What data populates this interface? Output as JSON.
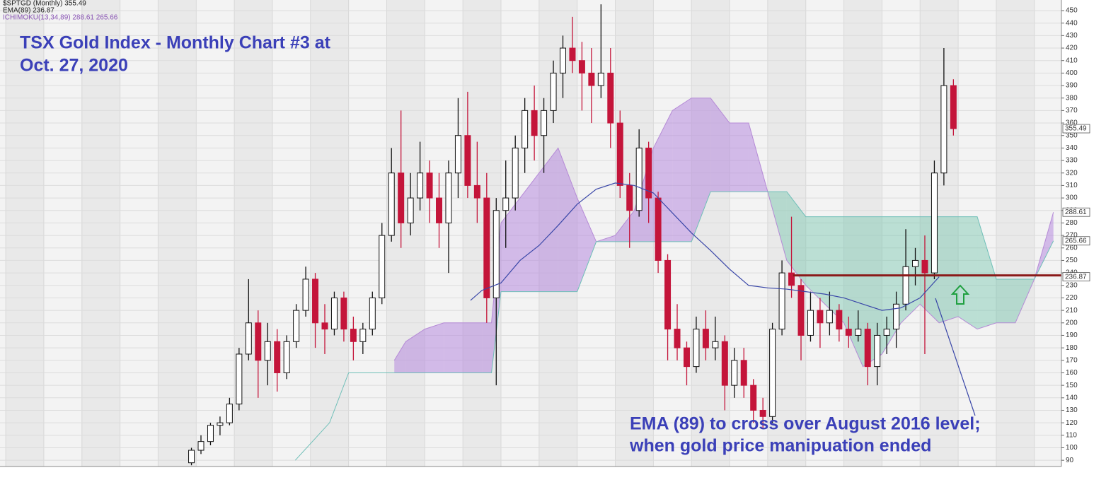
{
  "chart_data": {
    "type": "candlestick",
    "header": [
      "$SPTGD (Monthly) 355.49",
      "EMA(89) 236.87",
      "ICHIMOKU(13,34,89) 288.61 265.66"
    ],
    "title_lines": [
      "TSX Gold Index - Monthly Chart #3 at",
      "Oct. 27, 2020"
    ],
    "annotation_lines": [
      "EMA (89) to  cross over August 2016 level;",
      "when gold price manipuation ended"
    ],
    "xlim": [
      1995.85,
      2023.71
    ],
    "xticks": [
      1996,
      1997,
      1998,
      1999,
      2000,
      2001,
      2002,
      2003,
      2004,
      2005,
      2006,
      2007,
      2008,
      2009,
      2010,
      2011,
      2012,
      2013,
      2014,
      2015,
      2016,
      2017,
      2018,
      2019,
      2020,
      2021,
      2022,
      2023
    ],
    "ylim": [
      85,
      458.5
    ],
    "yticks": [
      90,
      100,
      110,
      120,
      130,
      140,
      150,
      160,
      170,
      180,
      190,
      200,
      210,
      220,
      230,
      240,
      250,
      260,
      270,
      280,
      290,
      300,
      310,
      320,
      330,
      340,
      350,
      360,
      370,
      380,
      390,
      400,
      410,
      420,
      430,
      440,
      450
    ],
    "grid": true,
    "price_labels": [
      355.49,
      288.61,
      265.66,
      236.87
    ],
    "candles": {
      "up_color": "#ffffff",
      "down_color": "#c4153a",
      "edge_color": "#111111",
      "x": [
        2000.75,
        2001,
        2001.25,
        2001.5,
        2001.75,
        2002,
        2002.25,
        2002.5,
        2002.75,
        2003,
        2003.25,
        2003.5,
        2003.75,
        2004,
        2004.25,
        2004.5,
        2004.75,
        2005,
        2005.25,
        2005.5,
        2005.75,
        2006,
        2006.25,
        2006.5,
        2006.75,
        2007,
        2007.25,
        2007.5,
        2007.75,
        2008,
        2008.25,
        2008.5,
        2008.75,
        2009,
        2009.25,
        2009.5,
        2009.75,
        2010,
        2010.25,
        2010.5,
        2010.75,
        2011,
        2011.25,
        2011.5,
        2011.75,
        2012,
        2012.25,
        2012.5,
        2012.75,
        2013,
        2013.25,
        2013.5,
        2013.75,
        2014,
        2014.25,
        2014.5,
        2014.75,
        2015,
        2015.25,
        2015.5,
        2015.75,
        2016,
        2016.25,
        2016.5,
        2016.75,
        2017,
        2017.25,
        2017.5,
        2017.75,
        2018,
        2018.25,
        2018.5,
        2018.75,
        2019,
        2019.25,
        2019.5,
        2019.75,
        2020,
        2020.25,
        2020.5,
        2020.75
      ],
      "open": [
        88,
        98,
        105,
        118,
        120,
        135,
        175,
        200,
        170,
        185,
        160,
        185,
        210,
        235,
        200,
        195,
        220,
        195,
        185,
        195,
        220,
        270,
        320,
        280,
        300,
        320,
        300,
        280,
        320,
        350,
        310,
        300,
        220,
        290,
        300,
        340,
        370,
        350,
        370,
        400,
        420,
        410,
        400,
        390,
        400,
        360,
        310,
        290,
        340,
        300,
        250,
        195,
        180,
        165,
        195,
        180,
        185,
        150,
        170,
        150,
        130,
        125,
        195,
        240,
        230,
        190,
        210,
        200,
        210,
        195,
        190,
        195,
        165,
        190,
        195,
        215,
        245,
        250,
        240,
        320,
        390
      ],
      "high": [
        100,
        110,
        120,
        125,
        140,
        180,
        235,
        210,
        200,
        195,
        190,
        215,
        245,
        240,
        215,
        225,
        225,
        205,
        200,
        225,
        280,
        340,
        370,
        320,
        345,
        330,
        320,
        330,
        380,
        385,
        345,
        320,
        300,
        330,
        350,
        380,
        390,
        380,
        410,
        430,
        445,
        425,
        420,
        455,
        420,
        370,
        320,
        355,
        345,
        305,
        255,
        215,
        185,
        205,
        210,
        205,
        190,
        180,
        180,
        155,
        140,
        200,
        250,
        285,
        235,
        225,
        220,
        225,
        215,
        205,
        210,
        200,
        200,
        205,
        225,
        275,
        260,
        270,
        330,
        420,
        395
      ],
      "low": [
        86,
        95,
        102,
        110,
        118,
        130,
        170,
        140,
        150,
        145,
        155,
        180,
        205,
        180,
        175,
        190,
        185,
        170,
        175,
        190,
        215,
        265,
        260,
        270,
        290,
        280,
        260,
        240,
        300,
        300,
        280,
        200,
        150,
        260,
        290,
        320,
        330,
        320,
        360,
        380,
        400,
        370,
        360,
        380,
        340,
        300,
        260,
        285,
        280,
        240,
        170,
        170,
        150,
        160,
        170,
        170,
        130,
        140,
        140,
        120,
        115,
        120,
        190,
        220,
        170,
        185,
        180,
        190,
        185,
        180,
        185,
        150,
        150,
        175,
        180,
        210,
        230,
        175,
        235,
        310,
        350
      ],
      "close": [
        98,
        105,
        118,
        120,
        135,
        175,
        200,
        170,
        185,
        160,
        185,
        210,
        235,
        200,
        195,
        220,
        195,
        185,
        195,
        220,
        270,
        320,
        280,
        300,
        320,
        300,
        280,
        320,
        350,
        310,
        300,
        220,
        290,
        300,
        340,
        370,
        350,
        370,
        400,
        420,
        410,
        400,
        390,
        400,
        360,
        310,
        290,
        340,
        300,
        250,
        195,
        180,
        165,
        195,
        180,
        185,
        150,
        170,
        150,
        130,
        125,
        195,
        240,
        230,
        190,
        210,
        200,
        210,
        195,
        190,
        195,
        165,
        190,
        195,
        215,
        245,
        250,
        240,
        320,
        390,
        355.49
      ]
    },
    "ema": {
      "name": "EMA(89)",
      "color": "#3a47a8",
      "x": [
        2008.2,
        2008.5,
        2009,
        2009.5,
        2010,
        2010.5,
        2011,
        2011.5,
        2012,
        2012.5,
        2013,
        2013.5,
        2014,
        2014.5,
        2015,
        2015.5,
        2016,
        2016.5,
        2017,
        2017.5,
        2018,
        2018.5,
        2019,
        2019.5,
        2020,
        2020.5
      ],
      "values": [
        218,
        226,
        232,
        250,
        262,
        278,
        295,
        307,
        312,
        310,
        304,
        288,
        272,
        258,
        243,
        230,
        228,
        227,
        225,
        223,
        220,
        215,
        210,
        212,
        220,
        236.87
      ]
    },
    "ichimoku": {
      "color_a": "rgba(178,130,222,0.5)",
      "color_b": "rgba(110,195,170,0.42)",
      "line_a": "#b58ad6",
      "line_b": "#6fbfb8",
      "x": [
        2003.6,
        2004.5,
        2005,
        2006.2,
        2006.5,
        2007,
        2007.5,
        2008,
        2008.5,
        2008.75,
        2009,
        2009.5,
        2010,
        2010.5,
        2011,
        2011.5,
        2012,
        2012.5,
        2013,
        2013.5,
        2014,
        2014.5,
        2015,
        2015.5,
        2016,
        2016.5,
        2017,
        2017.5,
        2018,
        2018.5,
        2019,
        2019.5,
        2020,
        2020.5,
        2021,
        2021.5,
        2022,
        2022.5,
        2023,
        2023.5
      ],
      "span_a": [
        null,
        null,
        null,
        170,
        185,
        195,
        200,
        200,
        200,
        200,
        280,
        300,
        320,
        340,
        300,
        265,
        270,
        290,
        340,
        370,
        380,
        380,
        360,
        360,
        305,
        250,
        230,
        215,
        200,
        165,
        175,
        200,
        215,
        200,
        205,
        195,
        200,
        200,
        235,
        288.61
      ],
      "span_b": [
        90,
        120,
        160,
        160,
        160,
        160,
        160,
        160,
        160,
        160,
        225,
        225,
        225,
        225,
        225,
        265,
        265,
        265,
        265,
        265,
        265,
        305,
        305,
        305,
        305,
        305,
        285,
        285,
        285,
        285,
        285,
        285,
        285,
        285,
        285,
        285,
        235,
        235,
        235,
        265.66
      ]
    },
    "level_line": {
      "value": 238,
      "x_start": 2016.67,
      "color": "#8b1a1a"
    }
  }
}
